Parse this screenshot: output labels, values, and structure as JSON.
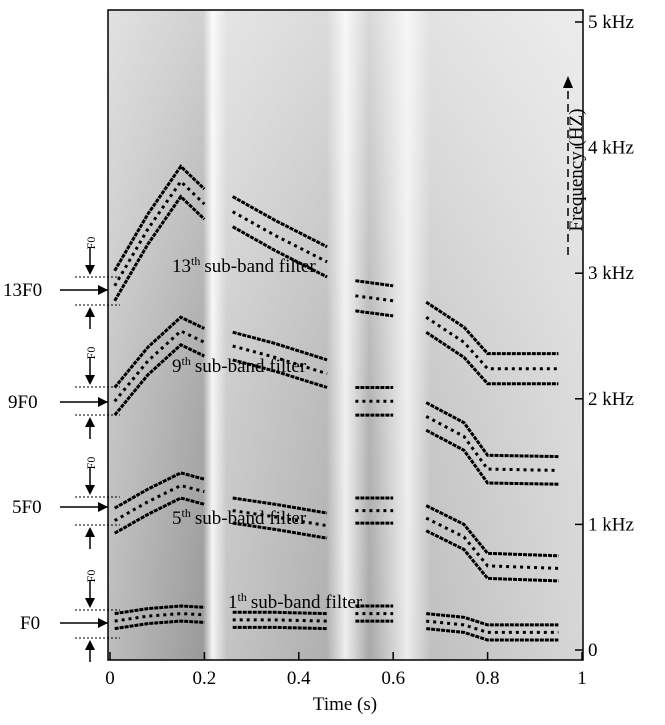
{
  "chart_data": {
    "type": "spectrogram",
    "x_label": "Time (s)",
    "y_label": "Frequency (HZ)",
    "xlim": [
      0,
      1
    ],
    "xticks": [
      0,
      0.2,
      0.4,
      0.6,
      0.8,
      1
    ],
    "ylim": [
      0,
      5000
    ],
    "yticks": [
      0,
      {
        "value": 1000,
        "label": "1 kHz"
      },
      {
        "value": 2000,
        "label": "2 kHz"
      },
      {
        "value": 3000,
        "label": "3 kHz"
      },
      {
        "value": 4000,
        "label": "4 kHz"
      },
      {
        "value": 5000,
        "label": "5 kHz"
      }
    ],
    "spacing_label": "F0",
    "x": [
      0.01,
      0.08,
      0.15,
      0.2,
      0.22,
      0.26,
      0.35,
      0.46,
      0.5,
      0.52,
      0.6,
      0.64,
      0.67,
      0.75,
      0.8,
      0.95
    ],
    "series": [
      {
        "marker": "F0",
        "ordinal": "1",
        "suffix": "th",
        "text": "sub-band filter",
        "color": "#000",
        "values": [
          230,
          270,
          290,
          280,
          null,
          240,
          240,
          230,
          null,
          290,
          290,
          null,
          230,
          200,
          140,
          140
        ],
        "lower": [
          170,
          210,
          230,
          220,
          null,
          180,
          180,
          170,
          null,
          230,
          230,
          null,
          170,
          140,
          80,
          80
        ],
        "upper": [
          290,
          330,
          350,
          340,
          null,
          300,
          300,
          290,
          null,
          350,
          350,
          null,
          290,
          260,
          200,
          200
        ]
      },
      {
        "marker": "5F0",
        "ordinal": "5",
        "suffix": "th",
        "text": "sub-band filter",
        "color": "#000",
        "values": [
          1030,
          1180,
          1310,
          1260,
          null,
          1110,
          1060,
          990,
          null,
          1110,
          1110,
          null,
          1050,
          900,
          670,
          650
        ],
        "lower": [
          930,
          1080,
          1210,
          1160,
          null,
          1010,
          960,
          890,
          null,
          1010,
          1010,
          null,
          950,
          800,
          570,
          550
        ],
        "upper": [
          1130,
          1280,
          1410,
          1360,
          null,
          1210,
          1160,
          1090,
          null,
          1210,
          1210,
          null,
          1150,
          1000,
          770,
          750
        ]
      },
      {
        "marker": "9F0",
        "ordinal": "9",
        "suffix": "th",
        "text": "sub-band filter",
        "color": "#000",
        "values": [
          1980,
          2300,
          2540,
          2450,
          null,
          2420,
          2330,
          2200,
          null,
          1980,
          1980,
          null,
          1860,
          1700,
          1440,
          1430
        ],
        "lower": [
          1870,
          2190,
          2430,
          2340,
          null,
          2310,
          2220,
          2090,
          null,
          1870,
          1870,
          null,
          1750,
          1590,
          1330,
          1320
        ],
        "upper": [
          2090,
          2410,
          2650,
          2560,
          null,
          2530,
          2440,
          2310,
          null,
          2090,
          2090,
          null,
          1970,
          1810,
          1550,
          1540
        ]
      },
      {
        "marker": "13F0",
        "ordinal": "13",
        "suffix": "th",
        "text": "sub-band filter",
        "color": "#000",
        "values": [
          2900,
          3350,
          3730,
          3550,
          null,
          3490,
          3300,
          3090,
          null,
          2820,
          2780,
          null,
          2650,
          2450,
          2240,
          2240
        ],
        "lower": [
          2780,
          3230,
          3610,
          3430,
          null,
          3370,
          3180,
          2970,
          null,
          2700,
          2660,
          null,
          2530,
          2330,
          2120,
          2120
        ],
        "upper": [
          3020,
          3470,
          3850,
          3670,
          null,
          3610,
          3420,
          3210,
          null,
          2940,
          2900,
          null,
          2770,
          2570,
          2360,
          2360
        ]
      }
    ]
  }
}
